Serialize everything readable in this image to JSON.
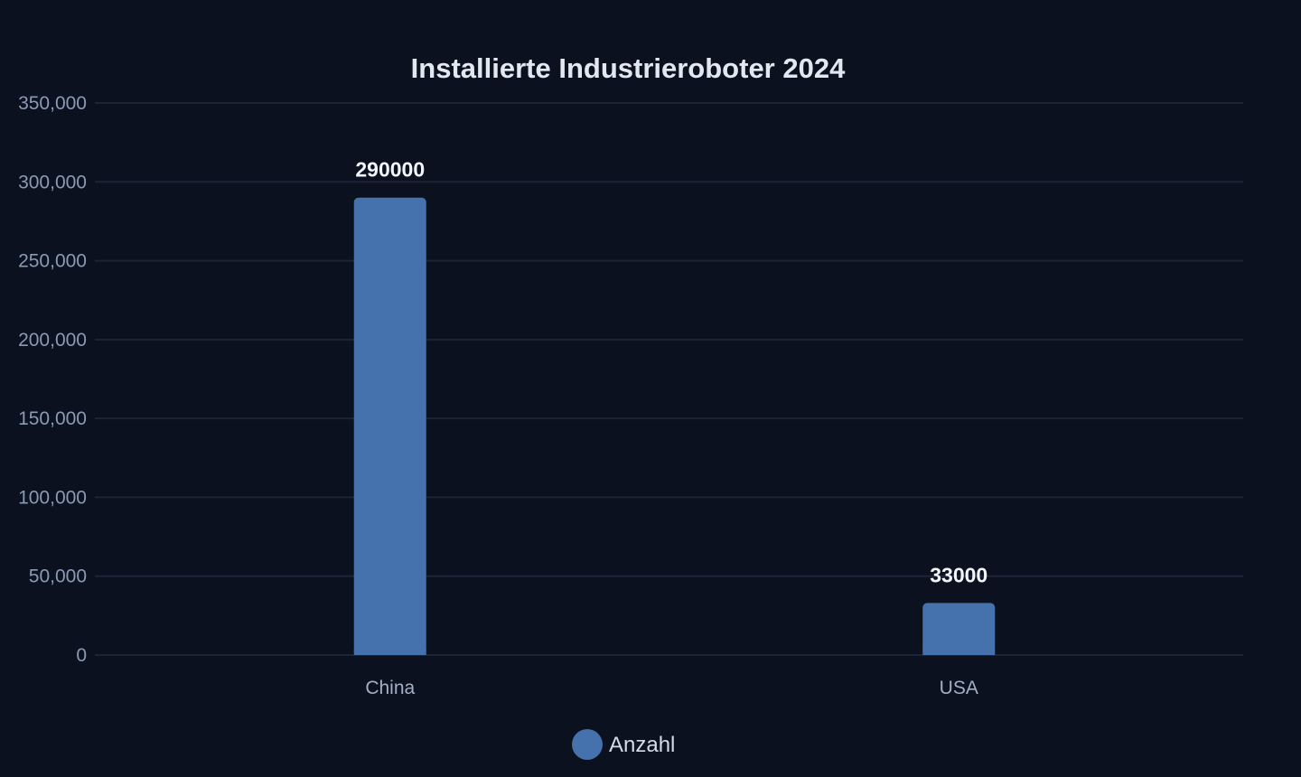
{
  "chart_data": {
    "type": "bar",
    "title": "Installierte Industrieroboter 2024",
    "categories": [
      "China",
      "USA"
    ],
    "series": [
      {
        "name": "Anzahl",
        "values": [
          290000,
          33000
        ]
      }
    ],
    "data_labels": [
      "290000",
      "33000"
    ],
    "y_ticks": [
      "0",
      "50,000",
      "100,000",
      "150,000",
      "200,000",
      "250,000",
      "300,000",
      "350,000"
    ],
    "ylim": [
      0,
      350000
    ],
    "y_tick_step": 50000,
    "grid": true,
    "legend_position": "bottom-center",
    "colors": {
      "bar": "#4571ad",
      "background": "#0c1120",
      "grid": "#1c2436"
    }
  }
}
